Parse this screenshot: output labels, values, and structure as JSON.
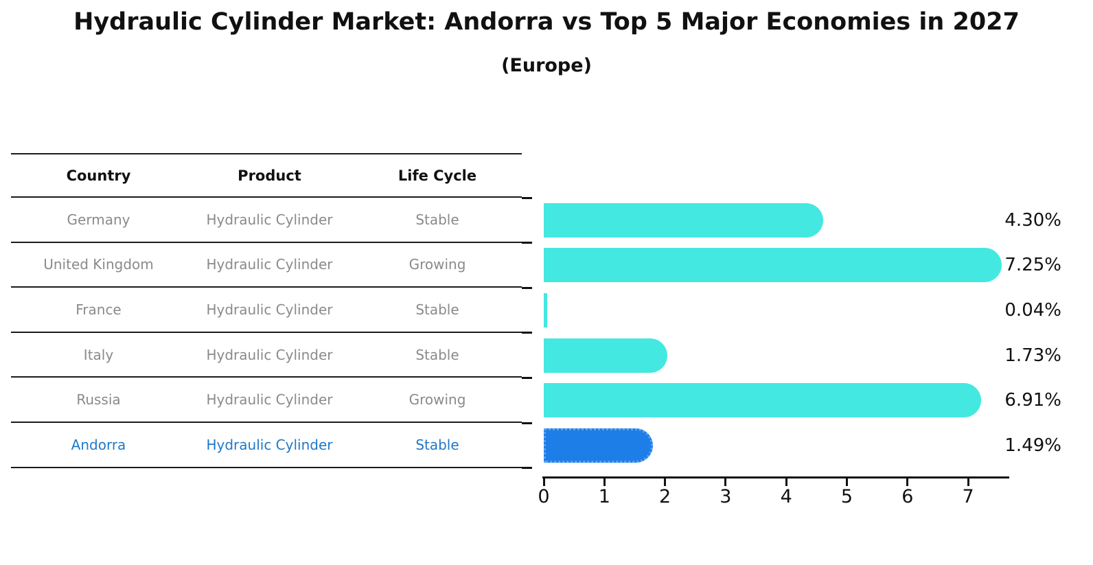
{
  "chart_data": {
    "type": "bar",
    "orientation": "horizontal",
    "title": "Hydraulic Cylinder Market: Andorra vs Top 5 Major Economies in 2027",
    "subtitle": "(Europe)",
    "categories": [
      "Germany",
      "United Kingdom",
      "France",
      "Italy",
      "Russia",
      "Andorra"
    ],
    "values": [
      4.3,
      7.25,
      0.04,
      1.73,
      6.91,
      1.49
    ],
    "value_labels": [
      "4.30%",
      "7.25%",
      "0.04%",
      "1.73%",
      "6.91%",
      "1.49%"
    ],
    "value_suffix": "%",
    "xlim": [
      0,
      7.7
    ],
    "x_ticks": [
      "0",
      "1",
      "2",
      "3",
      "4",
      "5",
      "6",
      "7"
    ],
    "grid": false,
    "legend": "none",
    "highlight_index": 5,
    "bar_color": "#43e8e1",
    "highlight_bar_color": "#1e7ee8"
  },
  "table": {
    "headers": [
      "Country",
      "Product",
      "Life Cycle"
    ],
    "rows": [
      {
        "country": "Germany",
        "product": "Hydraulic Cylinder",
        "life_cycle": "Stable",
        "highlighted": false
      },
      {
        "country": "United Kingdom",
        "product": "Hydraulic Cylinder",
        "life_cycle": "Growing",
        "highlighted": false
      },
      {
        "country": "France",
        "product": "Hydraulic Cylinder",
        "life_cycle": "Stable",
        "highlighted": false
      },
      {
        "country": "Italy",
        "product": "Hydraulic Cylinder",
        "life_cycle": "Stable",
        "highlighted": false
      },
      {
        "country": "Russia",
        "product": "Hydraulic Cylinder",
        "life_cycle": "Growing",
        "highlighted": false
      },
      {
        "country": "Andorra",
        "product": "Hydraulic Cylinder",
        "life_cycle": "Stable",
        "highlighted": true
      }
    ]
  },
  "colors": {
    "background": "#ffffff",
    "bar": "#43e8e1",
    "highlight_bar": "#1e7ee8",
    "highlight_border": "#5aa2f2",
    "table_text": "#8a8a8a",
    "highlight_text": "#1f78c8",
    "heading_text": "#111111",
    "rule_line": "#1a1a1a"
  }
}
